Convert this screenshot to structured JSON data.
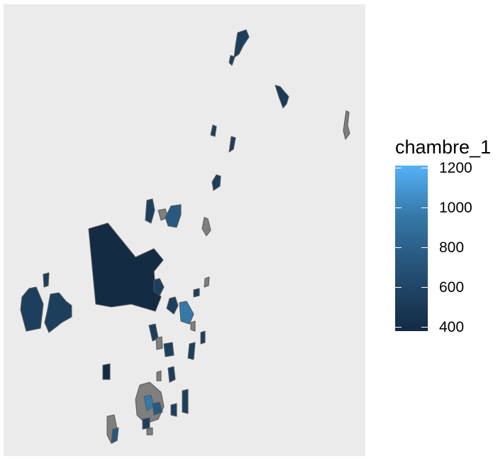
{
  "legend": {
    "title": "chambre_1",
    "ticks": [
      {
        "label": "1200",
        "value": 1200
      },
      {
        "label": "1000",
        "value": 1000
      },
      {
        "label": "800",
        "value": 800
      },
      {
        "label": "600",
        "value": 600
      },
      {
        "label": "400",
        "value": 400
      }
    ],
    "range": [
      370,
      1210
    ],
    "color_low": "#132b43",
    "color_high": "#56b1f7"
  },
  "map": {
    "panel_background": "#ebebeb",
    "na_fill": "#7f7f7f",
    "outline": "#555555"
  }
}
